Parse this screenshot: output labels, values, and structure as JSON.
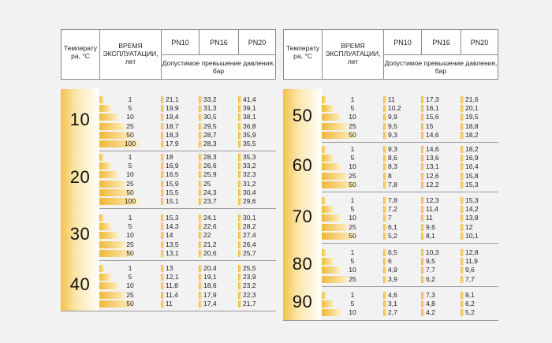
{
  "header": {
    "temp_label": "Температу ра, °С",
    "time_label": "ВРЕМЯ ЭКСПЛУАТАЦИИ, лет",
    "pn10": "PN10",
    "pn16": "PN16",
    "pn20": "PN20",
    "allowed_label": "Допустимое превышение давления, бар"
  },
  "left": [
    {
      "temp": "10",
      "rows": [
        {
          "years": "1",
          "pn10": "21,1",
          "pn16": "33,2",
          "pn20": "41,4"
        },
        {
          "years": "5",
          "pn10": "19,9",
          "pn16": "31,3",
          "pn20": "39,1"
        },
        {
          "years": "10",
          "pn10": "19,4",
          "pn16": "30,5",
          "pn20": "38,1"
        },
        {
          "years": "25",
          "pn10": "18,7",
          "pn16": "29,5",
          "pn20": "36,8"
        },
        {
          "years": "50",
          "pn10": "18,3",
          "pn16": "28,7",
          "pn20": "35,9"
        },
        {
          "years": "100",
          "pn10": "17,9",
          "pn16": "28,3",
          "pn20": "35,5"
        }
      ]
    },
    {
      "temp": "20",
      "rows": [
        {
          "years": "1",
          "pn10": "18",
          "pn16": "28,3",
          "pn20": "35,3"
        },
        {
          "years": "5",
          "pn10": "16,9",
          "pn16": "26,6",
          "pn20": "33,2"
        },
        {
          "years": "10",
          "pn10": "16,5",
          "pn16": "25,9",
          "pn20": "32,3"
        },
        {
          "years": "25",
          "pn10": "15,9",
          "pn16": "25",
          "pn20": "31,2"
        },
        {
          "years": "50",
          "pn10": "15,5",
          "pn16": "24,3",
          "pn20": "30,4"
        },
        {
          "years": "100",
          "pn10": "15,1",
          "pn16": "23,7",
          "pn20": "29,6"
        }
      ]
    },
    {
      "temp": "30",
      "rows": [
        {
          "years": "1",
          "pn10": "15,3",
          "pn16": "24,1",
          "pn20": "30,1"
        },
        {
          "years": "5",
          "pn10": "14,3",
          "pn16": "22,6",
          "pn20": "28,2"
        },
        {
          "years": "10",
          "pn10": "14",
          "pn16": "22",
          "pn20": "27,4"
        },
        {
          "years": "25",
          "pn10": "13,5",
          "pn16": "21,2",
          "pn20": "26,4"
        },
        {
          "years": "50",
          "pn10": "13,1",
          "pn16": "20,6",
          "pn20": "25,7"
        }
      ]
    },
    {
      "temp": "40",
      "rows": [
        {
          "years": "1",
          "pn10": "13",
          "pn16": "20,4",
          "pn20": "25,5"
        },
        {
          "years": "5",
          "pn10": "12,1",
          "pn16": "19,1",
          "pn20": "23,9"
        },
        {
          "years": "10",
          "pn10": "11,8",
          "pn16": "18,6",
          "pn20": "23,2"
        },
        {
          "years": "25",
          "pn10": "11,4",
          "pn16": "17,9",
          "pn20": "22,3"
        },
        {
          "years": "50",
          "pn10": "11",
          "pn16": "17,4",
          "pn20": "21,7"
        }
      ]
    }
  ],
  "right": [
    {
      "temp": "50",
      "rows": [
        {
          "years": "1",
          "pn10": "11",
          "pn16": "17,3",
          "pn20": "21,6"
        },
        {
          "years": "5",
          "pn10": "10,2",
          "pn16": "16,1",
          "pn20": "20,1"
        },
        {
          "years": "10",
          "pn10": "9,9",
          "pn16": "15,6",
          "pn20": "19,5"
        },
        {
          "years": "25",
          "pn10": "9,5",
          "pn16": "15",
          "pn20": "18,8"
        },
        {
          "years": "50",
          "pn10": "9,3",
          "pn16": "14,6",
          "pn20": "18,2"
        }
      ]
    },
    {
      "temp": "60",
      "rows": [
        {
          "years": "1",
          "pn10": "9,3",
          "pn16": "14,6",
          "pn20": "18,2"
        },
        {
          "years": "5",
          "pn10": "8,6",
          "pn16": "13,6",
          "pn20": "16,9"
        },
        {
          "years": "10",
          "pn10": "8,3",
          "pn16": "13,1",
          "pn20": "16,4"
        },
        {
          "years": "25",
          "pn10": "8",
          "pn16": "12,6",
          "pn20": "15,8"
        },
        {
          "years": "50",
          "pn10": "7,8",
          "pn16": "12,2",
          "pn20": "15,3"
        }
      ]
    },
    {
      "temp": "70",
      "rows": [
        {
          "years": "1",
          "pn10": "7,8",
          "pn16": "12,3",
          "pn20": "15,3"
        },
        {
          "years": "5",
          "pn10": "7,2",
          "pn16": "11,4",
          "pn20": "14,2"
        },
        {
          "years": "10",
          "pn10": "7",
          "pn16": "11",
          "pn20": "13,8"
        },
        {
          "years": "25",
          "pn10": "6,1",
          "pn16": "9,6",
          "pn20": "12"
        },
        {
          "years": "50",
          "pn10": "5,2",
          "pn16": "8,1",
          "pn20": "10,1"
        }
      ]
    },
    {
      "temp": "80",
      "rows": [
        {
          "years": "1",
          "pn10": "6,5",
          "pn16": "10,3",
          "pn20": "12,8"
        },
        {
          "years": "5",
          "pn10": "6",
          "pn16": "9,5",
          "pn20": "11,9"
        },
        {
          "years": "10",
          "pn10": "4,9",
          "pn16": "7,7",
          "pn20": "9,6"
        },
        {
          "years": "25",
          "pn10": "3,9",
          "pn16": "6,2",
          "pn20": "7,7"
        }
      ]
    },
    {
      "temp": "90",
      "rows": [
        {
          "years": "1",
          "pn10": "4,6",
          "pn16": "7,3",
          "pn20": "9,1"
        },
        {
          "years": "5",
          "pn10": "3,1",
          "pn16": "4,8",
          "pn20": "6,2"
        },
        {
          "years": "10",
          "pn10": "2,7",
          "pn16": "4,2",
          "pn20": "5,2"
        }
      ]
    }
  ]
}
